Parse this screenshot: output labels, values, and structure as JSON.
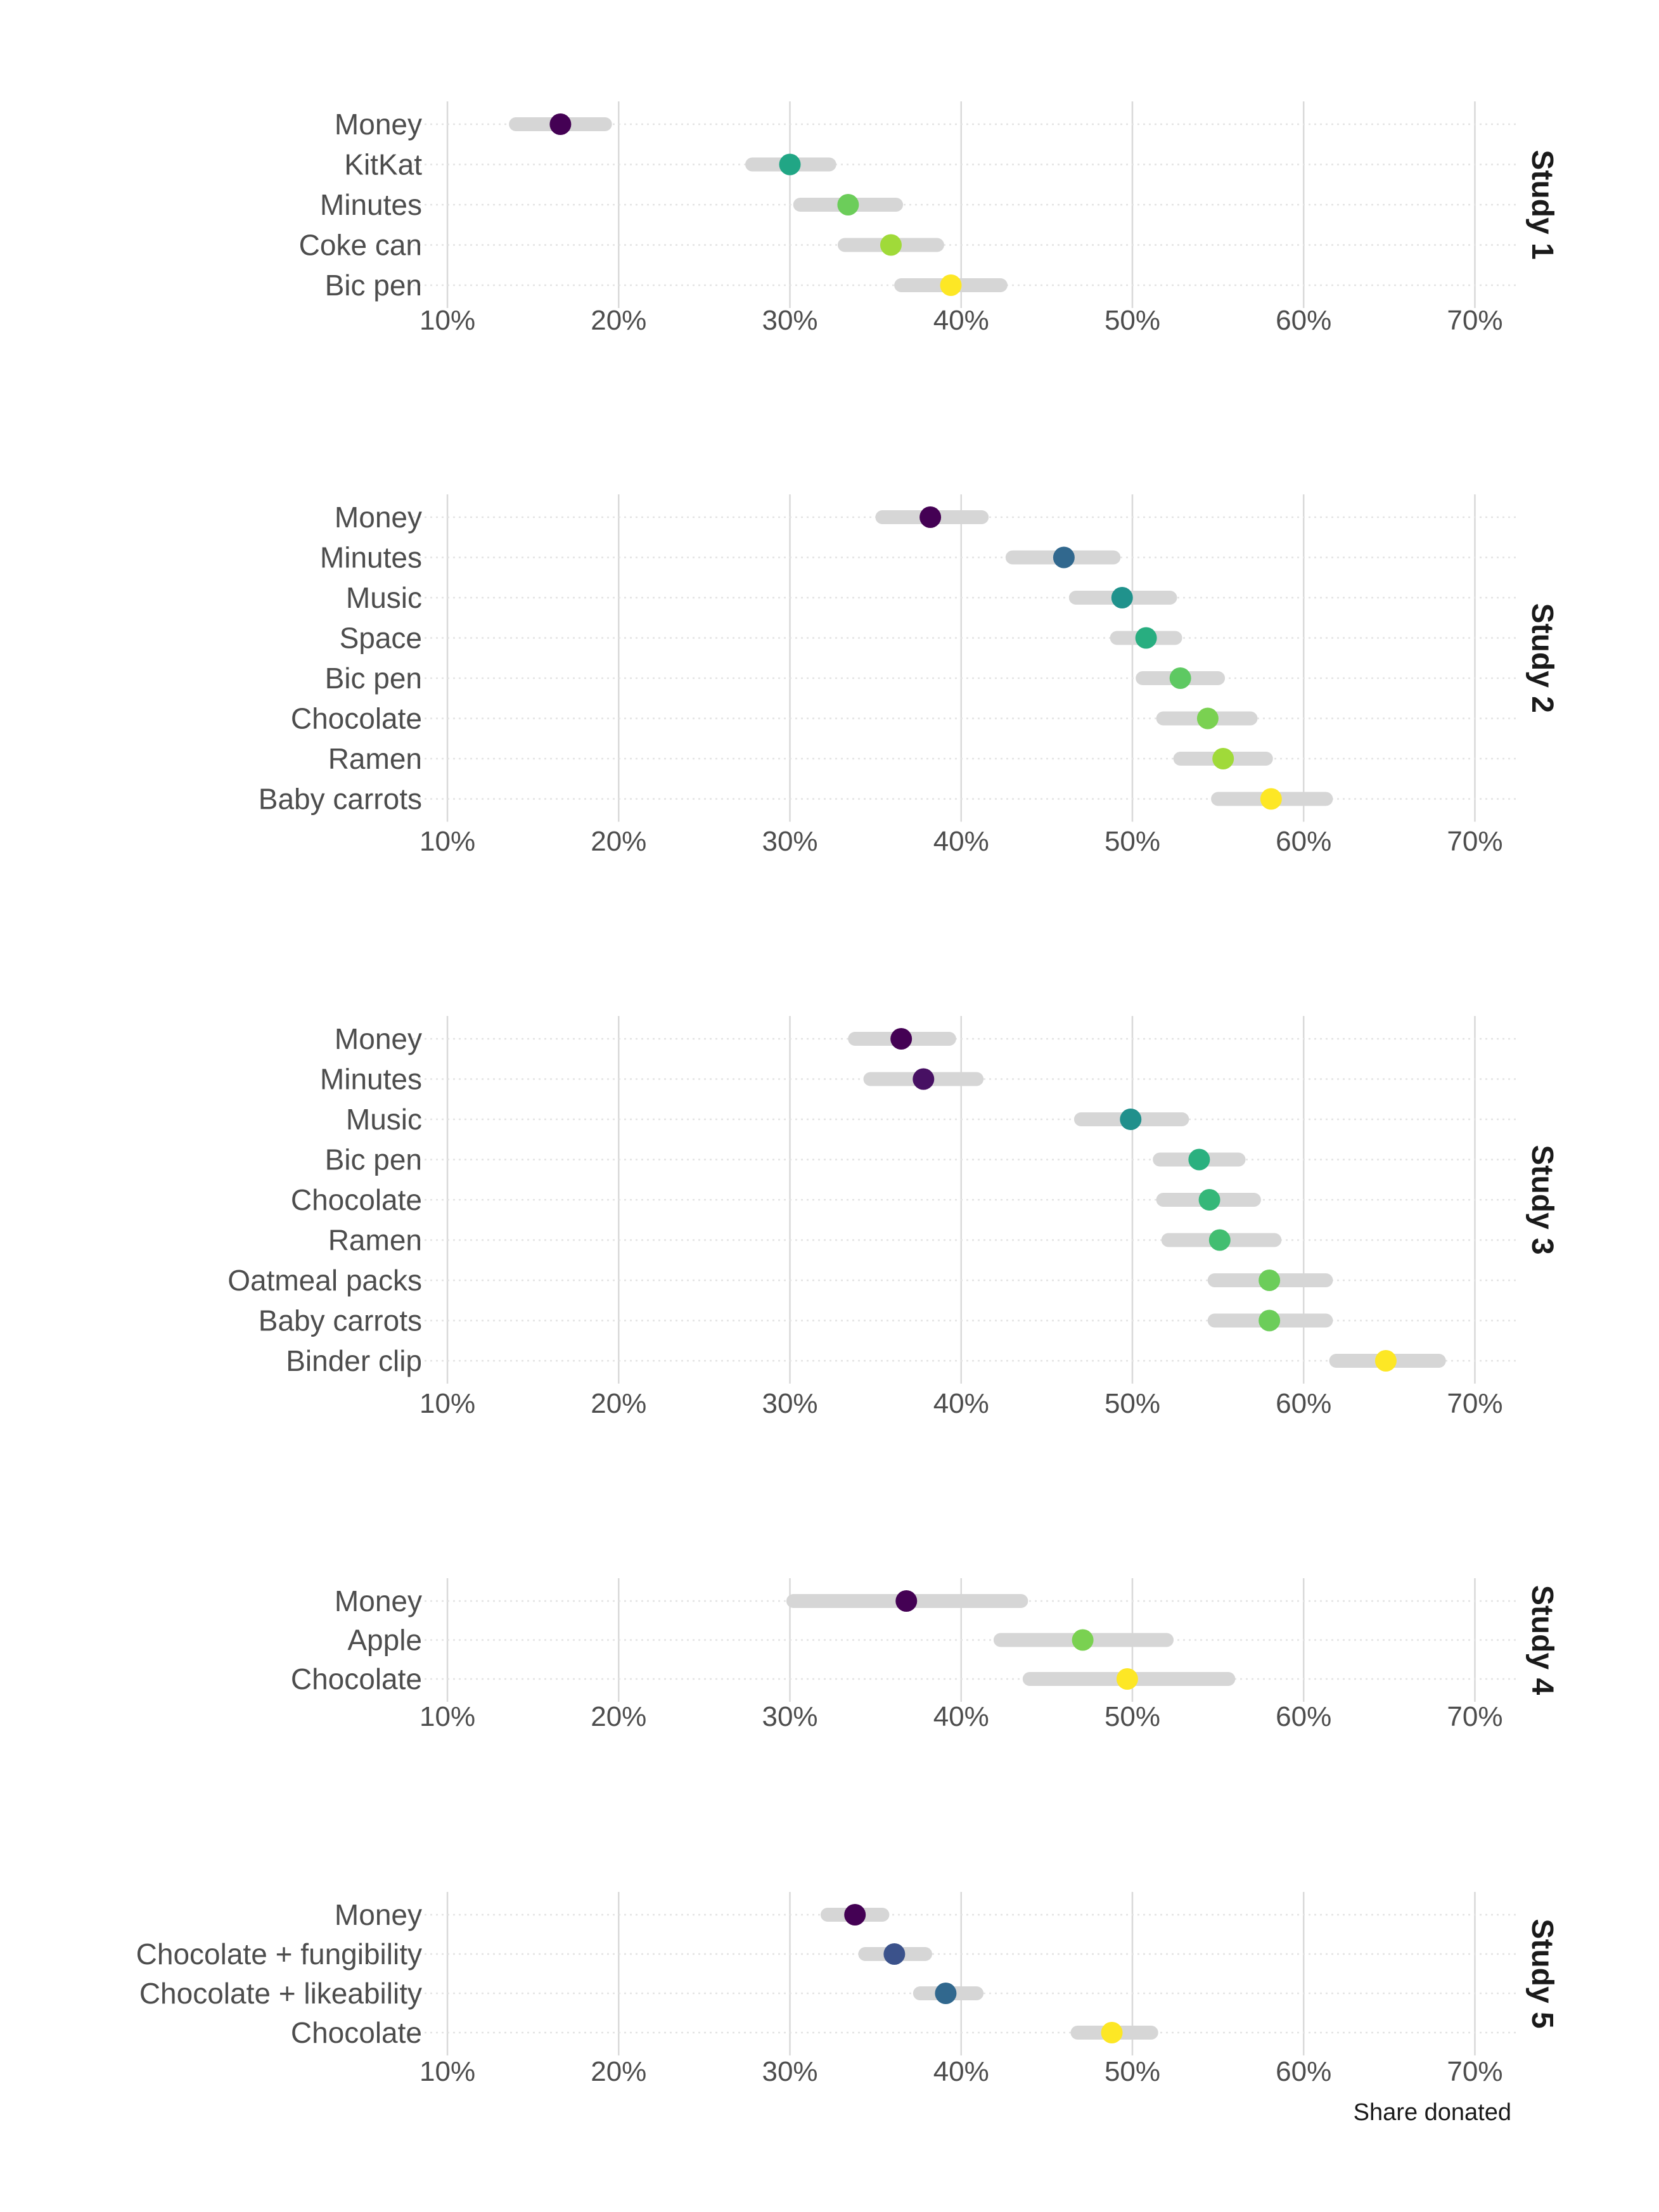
{
  "chart_data": {
    "type": "dot-interval",
    "xlabel": "Share donated",
    "x_ticks": [
      "10%",
      "20%",
      "30%",
      "40%",
      "50%",
      "60%",
      "70%"
    ],
    "x_tick_values": [
      10,
      20,
      30,
      40,
      50,
      60,
      70
    ],
    "xlim": [
      8,
      72.5
    ],
    "grid": true,
    "color_scale": "viridis",
    "panels": [
      {
        "strip_label": "Study 1",
        "categories": [
          "Money",
          "KitKat",
          "Minutes",
          "Coke can",
          "Bic pen"
        ],
        "values": [
          16.6,
          30.0,
          33.4,
          35.9,
          39.4
        ],
        "ci_low": [
          14.0,
          27.8,
          30.6,
          33.2,
          36.5
        ],
        "ci_high": [
          19.2,
          32.3,
          36.2,
          38.6,
          42.3
        ],
        "colors": [
          "#440154",
          "#21A685",
          "#6CCD5A",
          "#A0DA39",
          "#FDE725"
        ]
      },
      {
        "strip_label": "Study 2",
        "categories": [
          "Money",
          "Minutes",
          "Music",
          "Space",
          "Bic pen",
          "Chocolate",
          "Ramen",
          "Baby carrots"
        ],
        "values": [
          38.2,
          46.0,
          49.4,
          50.8,
          52.8,
          54.4,
          55.3,
          58.1
        ],
        "ci_low": [
          35.4,
          43.0,
          46.7,
          49.1,
          50.6,
          51.8,
          52.8,
          55.0
        ],
        "ci_high": [
          41.2,
          48.9,
          52.2,
          52.5,
          55.0,
          56.9,
          57.8,
          61.3
        ],
        "colors": [
          "#440154",
          "#31688E",
          "#20928C",
          "#28AE80",
          "#5EC962",
          "#7AD151",
          "#A0DA39",
          "#FDE725"
        ]
      },
      {
        "strip_label": "Study 3",
        "categories": [
          "Money",
          "Minutes",
          "Music",
          "Bic pen",
          "Chocolate",
          "Ramen",
          "Oatmeal packs",
          "Baby carrots",
          "Binder clip"
        ],
        "values": [
          36.5,
          37.8,
          49.9,
          53.9,
          54.5,
          55.1,
          58.0,
          58.0,
          64.8
        ],
        "ci_low": [
          33.8,
          34.7,
          47.0,
          51.6,
          51.8,
          52.1,
          54.8,
          54.8,
          61.9
        ],
        "ci_high": [
          39.3,
          40.9,
          52.9,
          56.2,
          57.1,
          58.3,
          61.3,
          61.3,
          67.9
        ],
        "colors": [
          "#440154",
          "#471063",
          "#21908C",
          "#2AB07F",
          "#35B779",
          "#42BE71",
          "#6CCD5A",
          "#6CCD5A",
          "#FDE725"
        ]
      },
      {
        "strip_label": "Study 4",
        "categories": [
          "Money",
          "Apple",
          "Chocolate"
        ],
        "values": [
          36.8,
          47.1,
          49.7
        ],
        "ci_low": [
          30.2,
          42.3,
          44.0
        ],
        "ci_high": [
          43.5,
          52.0,
          55.6
        ],
        "colors": [
          "#440154",
          "#7AD151",
          "#FDE725"
        ]
      },
      {
        "strip_label": "Study 5",
        "categories": [
          "Money",
          "Chocolate + fungibility",
          "Chocolate + likeability",
          "Chocolate"
        ],
        "values": [
          33.8,
          36.1,
          39.1,
          48.8
        ],
        "ci_low": [
          32.2,
          34.4,
          37.6,
          46.8
        ],
        "ci_high": [
          35.4,
          37.9,
          40.9,
          51.1
        ],
        "colors": [
          "#440154",
          "#3B528B",
          "#31688E",
          "#FDE725"
        ]
      }
    ]
  }
}
